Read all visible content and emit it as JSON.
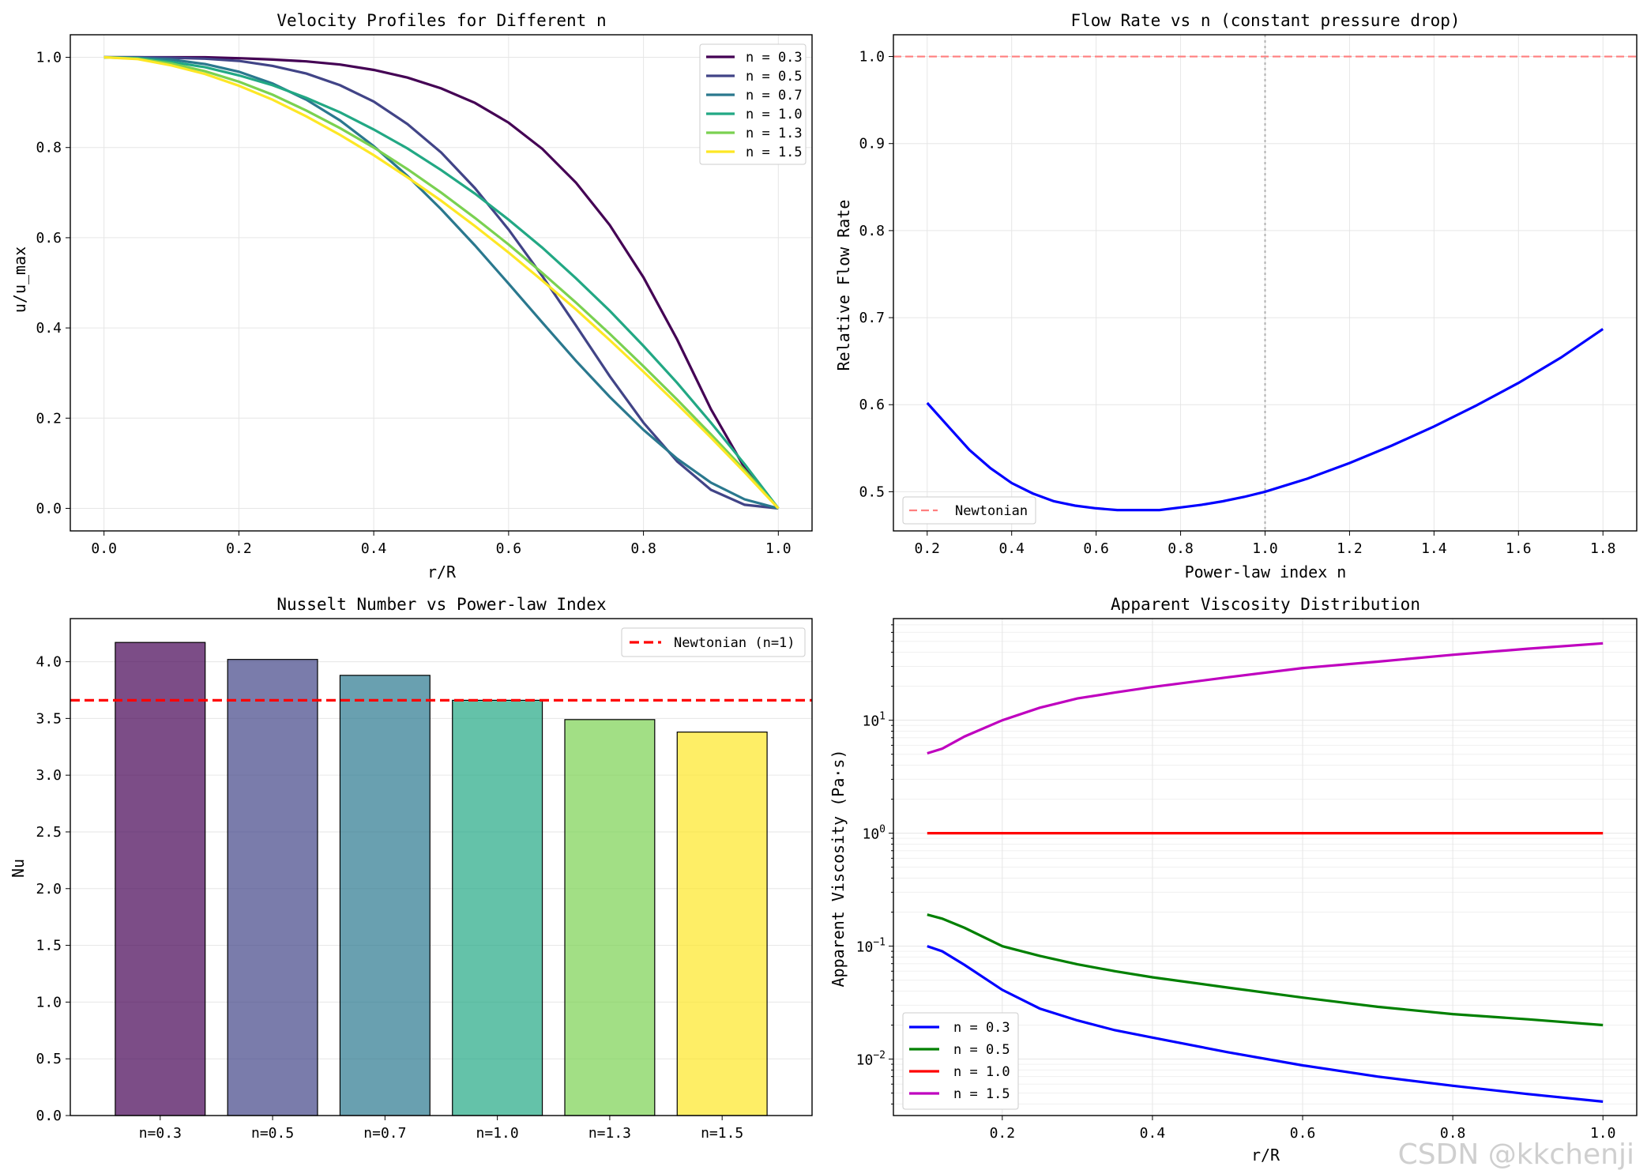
{
  "watermark": "CSDN @kkchenji",
  "chart_data": [
    {
      "type": "line",
      "title": "Velocity Profiles for Different n",
      "xlabel": "r/R",
      "ylabel": "u/u_max",
      "xlim": [
        -0.05,
        1.05
      ],
      "ylim": [
        -0.05,
        1.05
      ],
      "xticks": [
        0.0,
        0.2,
        0.4,
        0.6,
        0.8,
        1.0
      ],
      "xtick_labels": [
        "0.0",
        "0.2",
        "0.4",
        "0.6",
        "0.8",
        "1.0"
      ],
      "yticks": [
        0.0,
        0.2,
        0.4,
        0.6,
        0.8,
        1.0
      ],
      "ytick_labels": [
        "0.0",
        "0.2",
        "0.4",
        "0.6",
        "0.8",
        "1.0"
      ],
      "grid": true,
      "legend": "top-right",
      "x": [
        0.0,
        0.05,
        0.1,
        0.15,
        0.2,
        0.25,
        0.3,
        0.35,
        0.4,
        0.45,
        0.5,
        0.55,
        0.6,
        0.65,
        0.7,
        0.75,
        0.8,
        0.85,
        0.9,
        0.95,
        1.0
      ],
      "series": [
        {
          "name": "n = 0.3",
          "color": "#440154",
          "values": [
            1.0,
            1.0,
            1.0,
            1.0,
            0.998,
            0.995,
            0.991,
            0.984,
            0.972,
            0.955,
            0.931,
            0.899,
            0.855,
            0.797,
            0.722,
            0.628,
            0.512,
            0.374,
            0.22,
            0.09,
            0.0
          ]
        },
        {
          "name": "n = 0.5",
          "color": "#414487",
          "values": [
            1.0,
            1.0,
            0.999,
            0.997,
            0.992,
            0.981,
            0.964,
            0.938,
            0.902,
            0.852,
            0.789,
            0.71,
            0.618,
            0.515,
            0.405,
            0.293,
            0.19,
            0.104,
            0.041,
            0.008,
            0.0
          ]
        },
        {
          "name": "n = 0.7",
          "color": "#2a788e",
          "values": [
            1.0,
            0.999,
            0.995,
            0.985,
            0.968,
            0.942,
            0.906,
            0.86,
            0.803,
            0.737,
            0.663,
            0.583,
            0.498,
            0.412,
            0.327,
            0.247,
            0.174,
            0.11,
            0.057,
            0.02,
            0.0
          ]
        },
        {
          "name": "n = 1.0",
          "color": "#22a884",
          "values": [
            1.0,
            0.998,
            0.99,
            0.978,
            0.96,
            0.938,
            0.91,
            0.878,
            0.84,
            0.798,
            0.75,
            0.698,
            0.64,
            0.578,
            0.51,
            0.438,
            0.36,
            0.278,
            0.19,
            0.098,
            0.0
          ]
        },
        {
          "name": "n = 1.3",
          "color": "#7ad151",
          "values": [
            1.0,
            0.997,
            0.986,
            0.969,
            0.946,
            0.917,
            0.882,
            0.843,
            0.8,
            0.752,
            0.7,
            0.644,
            0.585,
            0.522,
            0.456,
            0.387,
            0.315,
            0.241,
            0.164,
            0.085,
            0.0
          ]
        },
        {
          "name": "n = 1.5",
          "color": "#fde725",
          "values": [
            1.0,
            0.996,
            0.982,
            0.963,
            0.937,
            0.906,
            0.869,
            0.828,
            0.783,
            0.734,
            0.682,
            0.626,
            0.567,
            0.505,
            0.441,
            0.373,
            0.303,
            0.231,
            0.157,
            0.08,
            0.0
          ]
        }
      ]
    },
    {
      "type": "line",
      "title": "Flow Rate vs n (constant pressure drop)",
      "xlabel": "Power-law index n",
      "ylabel": "Relative Flow Rate",
      "xlim": [
        0.12,
        1.88
      ],
      "ylim": [
        0.455,
        1.025
      ],
      "xticks": [
        0.2,
        0.4,
        0.6,
        0.8,
        1.0,
        1.2,
        1.4,
        1.6,
        1.8
      ],
      "xtick_labels": [
        "0.2",
        "0.4",
        "0.6",
        "0.8",
        "1.0",
        "1.2",
        "1.4",
        "1.6",
        "1.8"
      ],
      "yticks": [
        0.5,
        0.6,
        0.7,
        0.8,
        0.9,
        1.0
      ],
      "ytick_labels": [
        "0.5",
        "0.6",
        "0.7",
        "0.8",
        "0.9",
        "1.0"
      ],
      "grid": true,
      "legend": "lower-left",
      "hline": {
        "y": 1.0,
        "name": "Newtonian",
        "color": "#ff7f7f"
      },
      "vline": {
        "x": 1.0,
        "color": "#b0b0b0"
      },
      "series": [
        {
          "name": "",
          "color": "#0000ff",
          "x": [
            0.2,
            0.25,
            0.3,
            0.35,
            0.4,
            0.45,
            0.5,
            0.55,
            0.6,
            0.65,
            0.7,
            0.75,
            0.8,
            0.85,
            0.9,
            0.95,
            1.0,
            1.1,
            1.2,
            1.3,
            1.4,
            1.5,
            1.6,
            1.7,
            1.8
          ],
          "values": [
            0.602,
            0.575,
            0.548,
            0.527,
            0.51,
            0.498,
            0.489,
            0.484,
            0.481,
            0.479,
            0.479,
            0.479,
            0.482,
            0.485,
            0.489,
            0.494,
            0.5,
            0.515,
            0.533,
            0.553,
            0.575,
            0.599,
            0.625,
            0.654,
            0.687
          ]
        }
      ]
    },
    {
      "type": "bar",
      "title": "Nusselt Number vs Power-law Index",
      "xlabel": "",
      "ylabel": "Nu",
      "ylim": [
        0,
        4.38
      ],
      "yticks": [
        0.0,
        0.5,
        1.0,
        1.5,
        2.0,
        2.5,
        3.0,
        3.5,
        4.0
      ],
      "ytick_labels": [
        "0.0",
        "0.5",
        "1.0",
        "1.5",
        "2.0",
        "2.5",
        "3.0",
        "3.5",
        "4.0"
      ],
      "grid": true,
      "legend": "top-right",
      "categories": [
        "n=0.3",
        "n=0.5",
        "n=0.7",
        "n=1.0",
        "n=1.3",
        "n=1.5"
      ],
      "values": [
        4.17,
        4.02,
        3.88,
        3.66,
        3.49,
        3.38
      ],
      "colors": [
        "#440154",
        "#414487",
        "#2a788e",
        "#22a884",
        "#7ad151",
        "#fde725"
      ],
      "hline": {
        "y": 3.66,
        "name": "Newtonian (n=1)",
        "color": "#ff0000"
      }
    },
    {
      "type": "line",
      "title": "Apparent Viscosity Distribution",
      "xlabel": "r/R",
      "ylabel": "Apparent Viscosity (Pa·s)",
      "yscale": "log",
      "xlim": [
        0.055,
        1.045
      ],
      "ylim_log10": [
        -2.5,
        1.9
      ],
      "xticks": [
        0.2,
        0.4,
        0.6,
        0.8,
        1.0
      ],
      "xtick_labels": [
        "0.2",
        "0.4",
        "0.6",
        "0.8",
        "1.0"
      ],
      "yticks_log10": [
        -2,
        -1,
        0,
        1
      ],
      "ytick_labels": [
        "10−2",
        "10−1",
        "100",
        "101"
      ],
      "grid": true,
      "legend": "lower-left",
      "x": [
        0.1,
        0.12,
        0.15,
        0.2,
        0.25,
        0.3,
        0.35,
        0.4,
        0.5,
        0.6,
        0.7,
        0.8,
        0.9,
        1.0
      ],
      "series": [
        {
          "name": "n = 0.3",
          "color": "#0000ff",
          "values": [
            0.1,
            0.09,
            0.068,
            0.041,
            0.028,
            0.022,
            0.018,
            0.0155,
            0.0115,
            0.0088,
            0.007,
            0.0058,
            0.0049,
            0.0042
          ]
        },
        {
          "name": "n = 0.5",
          "color": "#008000",
          "values": [
            0.19,
            0.175,
            0.145,
            0.1,
            0.082,
            0.069,
            0.06,
            0.053,
            0.043,
            0.035,
            0.029,
            0.025,
            0.0225,
            0.02
          ]
        },
        {
          "name": "n = 1.0",
          "color": "#ff0000",
          "values": [
            1.0,
            1.0,
            1.0,
            1.0,
            1.0,
            1.0,
            1.0,
            1.0,
            1.0,
            1.0,
            1.0,
            1.0,
            1.0,
            1.0
          ]
        },
        {
          "name": "n = 1.5",
          "color": "#bf00bf",
          "values": [
            5.1,
            5.6,
            7.2,
            10.0,
            12.9,
            15.6,
            17.6,
            19.7,
            24.0,
            29.0,
            33.0,
            38.0,
            43.0,
            48.0
          ]
        }
      ]
    }
  ]
}
